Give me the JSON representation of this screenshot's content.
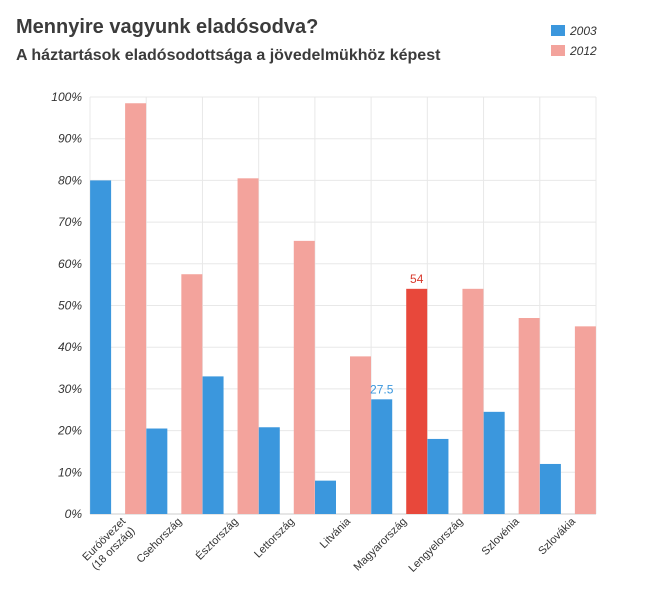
{
  "title": "Mennyire vagyunk eladósodva?",
  "subtitle": "A háztartások eladósodottsága a jövedelmükhöz képest",
  "colors": {
    "series_2003": "#3b97dd",
    "series_2012": "#f3a39c",
    "highlight_2012": "#e8483b",
    "label_2003": "#3b97dd",
    "label_2012": "#d8392c",
    "grid": "#e8e8e8",
    "axis": "#cccccc",
    "title": "#3b3b3b"
  },
  "chart_data": {
    "type": "bar",
    "title": "Mennyire vagyunk eladósodva?",
    "subtitle": "A háztartások eladósodottsága a jövedelmükhöz képest",
    "xlabel": "",
    "ylabel": "",
    "ylim": [
      0,
      100
    ],
    "yticks": [
      "0%",
      "10%",
      "20%",
      "30%",
      "40%",
      "50%",
      "60%",
      "70%",
      "80%",
      "90%",
      "100%"
    ],
    "grid": true,
    "legend": "top-right",
    "categories": [
      [
        "Euróövezet",
        "(18 ország)"
      ],
      [
        "Csehország"
      ],
      [
        "Észtország"
      ],
      [
        "Lettország"
      ],
      [
        "Litvánia"
      ],
      [
        "Magyarország"
      ],
      [
        "Lengyelország"
      ],
      [
        "Szlovénia"
      ],
      [
        "Szlovákia"
      ]
    ],
    "series": [
      {
        "name": "2003",
        "values": [
          80,
          20.5,
          33,
          20.8,
          8,
          27.5,
          18,
          24.5,
          12
        ]
      },
      {
        "name": "2012",
        "values": [
          98.5,
          57.5,
          80.5,
          65.5,
          37.8,
          54,
          54,
          47,
          45
        ]
      }
    ],
    "highlight_category": 5,
    "data_labels": [
      {
        "series": 0,
        "category": 5,
        "text": "27.5"
      },
      {
        "series": 1,
        "category": 5,
        "text": "54"
      }
    ]
  }
}
